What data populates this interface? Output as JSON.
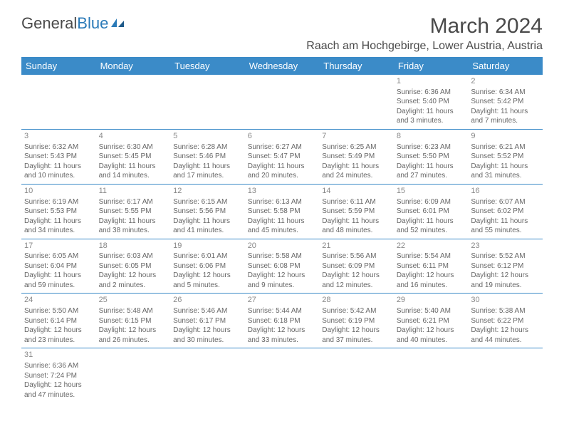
{
  "logo": {
    "general": "General",
    "blue": "Blue"
  },
  "title": "March 2024",
  "location": "Raach am Hochgebirge, Lower Austria, Austria",
  "colors": {
    "header_bg": "#3b8bc8",
    "header_text": "#ffffff",
    "border": "#3b8bc8",
    "text": "#666666",
    "title_text": "#4a4a4a",
    "logo_blue": "#2a7ab8"
  },
  "weekdays": [
    "Sunday",
    "Monday",
    "Tuesday",
    "Wednesday",
    "Thursday",
    "Friday",
    "Saturday"
  ],
  "weeks": [
    [
      null,
      null,
      null,
      null,
      null,
      {
        "n": "1",
        "sr": "Sunrise: 6:36 AM",
        "ss": "Sunset: 5:40 PM",
        "dl1": "Daylight: 11 hours",
        "dl2": "and 3 minutes."
      },
      {
        "n": "2",
        "sr": "Sunrise: 6:34 AM",
        "ss": "Sunset: 5:42 PM",
        "dl1": "Daylight: 11 hours",
        "dl2": "and 7 minutes."
      }
    ],
    [
      {
        "n": "3",
        "sr": "Sunrise: 6:32 AM",
        "ss": "Sunset: 5:43 PM",
        "dl1": "Daylight: 11 hours",
        "dl2": "and 10 minutes."
      },
      {
        "n": "4",
        "sr": "Sunrise: 6:30 AM",
        "ss": "Sunset: 5:45 PM",
        "dl1": "Daylight: 11 hours",
        "dl2": "and 14 minutes."
      },
      {
        "n": "5",
        "sr": "Sunrise: 6:28 AM",
        "ss": "Sunset: 5:46 PM",
        "dl1": "Daylight: 11 hours",
        "dl2": "and 17 minutes."
      },
      {
        "n": "6",
        "sr": "Sunrise: 6:27 AM",
        "ss": "Sunset: 5:47 PM",
        "dl1": "Daylight: 11 hours",
        "dl2": "and 20 minutes."
      },
      {
        "n": "7",
        "sr": "Sunrise: 6:25 AM",
        "ss": "Sunset: 5:49 PM",
        "dl1": "Daylight: 11 hours",
        "dl2": "and 24 minutes."
      },
      {
        "n": "8",
        "sr": "Sunrise: 6:23 AM",
        "ss": "Sunset: 5:50 PM",
        "dl1": "Daylight: 11 hours",
        "dl2": "and 27 minutes."
      },
      {
        "n": "9",
        "sr": "Sunrise: 6:21 AM",
        "ss": "Sunset: 5:52 PM",
        "dl1": "Daylight: 11 hours",
        "dl2": "and 31 minutes."
      }
    ],
    [
      {
        "n": "10",
        "sr": "Sunrise: 6:19 AM",
        "ss": "Sunset: 5:53 PM",
        "dl1": "Daylight: 11 hours",
        "dl2": "and 34 minutes."
      },
      {
        "n": "11",
        "sr": "Sunrise: 6:17 AM",
        "ss": "Sunset: 5:55 PM",
        "dl1": "Daylight: 11 hours",
        "dl2": "and 38 minutes."
      },
      {
        "n": "12",
        "sr": "Sunrise: 6:15 AM",
        "ss": "Sunset: 5:56 PM",
        "dl1": "Daylight: 11 hours",
        "dl2": "and 41 minutes."
      },
      {
        "n": "13",
        "sr": "Sunrise: 6:13 AM",
        "ss": "Sunset: 5:58 PM",
        "dl1": "Daylight: 11 hours",
        "dl2": "and 45 minutes."
      },
      {
        "n": "14",
        "sr": "Sunrise: 6:11 AM",
        "ss": "Sunset: 5:59 PM",
        "dl1": "Daylight: 11 hours",
        "dl2": "and 48 minutes."
      },
      {
        "n": "15",
        "sr": "Sunrise: 6:09 AM",
        "ss": "Sunset: 6:01 PM",
        "dl1": "Daylight: 11 hours",
        "dl2": "and 52 minutes."
      },
      {
        "n": "16",
        "sr": "Sunrise: 6:07 AM",
        "ss": "Sunset: 6:02 PM",
        "dl1": "Daylight: 11 hours",
        "dl2": "and 55 minutes."
      }
    ],
    [
      {
        "n": "17",
        "sr": "Sunrise: 6:05 AM",
        "ss": "Sunset: 6:04 PM",
        "dl1": "Daylight: 11 hours",
        "dl2": "and 59 minutes."
      },
      {
        "n": "18",
        "sr": "Sunrise: 6:03 AM",
        "ss": "Sunset: 6:05 PM",
        "dl1": "Daylight: 12 hours",
        "dl2": "and 2 minutes."
      },
      {
        "n": "19",
        "sr": "Sunrise: 6:01 AM",
        "ss": "Sunset: 6:06 PM",
        "dl1": "Daylight: 12 hours",
        "dl2": "and 5 minutes."
      },
      {
        "n": "20",
        "sr": "Sunrise: 5:58 AM",
        "ss": "Sunset: 6:08 PM",
        "dl1": "Daylight: 12 hours",
        "dl2": "and 9 minutes."
      },
      {
        "n": "21",
        "sr": "Sunrise: 5:56 AM",
        "ss": "Sunset: 6:09 PM",
        "dl1": "Daylight: 12 hours",
        "dl2": "and 12 minutes."
      },
      {
        "n": "22",
        "sr": "Sunrise: 5:54 AM",
        "ss": "Sunset: 6:11 PM",
        "dl1": "Daylight: 12 hours",
        "dl2": "and 16 minutes."
      },
      {
        "n": "23",
        "sr": "Sunrise: 5:52 AM",
        "ss": "Sunset: 6:12 PM",
        "dl1": "Daylight: 12 hours",
        "dl2": "and 19 minutes."
      }
    ],
    [
      {
        "n": "24",
        "sr": "Sunrise: 5:50 AM",
        "ss": "Sunset: 6:14 PM",
        "dl1": "Daylight: 12 hours",
        "dl2": "and 23 minutes."
      },
      {
        "n": "25",
        "sr": "Sunrise: 5:48 AM",
        "ss": "Sunset: 6:15 PM",
        "dl1": "Daylight: 12 hours",
        "dl2": "and 26 minutes."
      },
      {
        "n": "26",
        "sr": "Sunrise: 5:46 AM",
        "ss": "Sunset: 6:17 PM",
        "dl1": "Daylight: 12 hours",
        "dl2": "and 30 minutes."
      },
      {
        "n": "27",
        "sr": "Sunrise: 5:44 AM",
        "ss": "Sunset: 6:18 PM",
        "dl1": "Daylight: 12 hours",
        "dl2": "and 33 minutes."
      },
      {
        "n": "28",
        "sr": "Sunrise: 5:42 AM",
        "ss": "Sunset: 6:19 PM",
        "dl1": "Daylight: 12 hours",
        "dl2": "and 37 minutes."
      },
      {
        "n": "29",
        "sr": "Sunrise: 5:40 AM",
        "ss": "Sunset: 6:21 PM",
        "dl1": "Daylight: 12 hours",
        "dl2": "and 40 minutes."
      },
      {
        "n": "30",
        "sr": "Sunrise: 5:38 AM",
        "ss": "Sunset: 6:22 PM",
        "dl1": "Daylight: 12 hours",
        "dl2": "and 44 minutes."
      }
    ],
    [
      {
        "n": "31",
        "sr": "Sunrise: 6:36 AM",
        "ss": "Sunset: 7:24 PM",
        "dl1": "Daylight: 12 hours",
        "dl2": "and 47 minutes."
      },
      null,
      null,
      null,
      null,
      null,
      null
    ]
  ]
}
